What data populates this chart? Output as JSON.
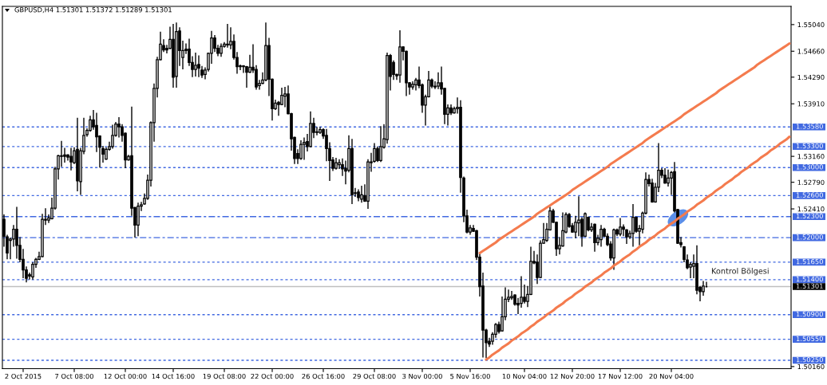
{
  "chart_data": {
    "type": "candlestick",
    "title": "GBPUSD,H4 1.51301 1.51372 1.51289 1.51301",
    "categories": [
      null,
      null,
      null,
      null,
      null,
      null,
      "2 Oct 2015",
      null,
      null,
      null,
      null,
      null,
      null,
      null,
      null,
      null,
      null,
      null,
      null,
      null,
      null,
      null,
      "7 Oct 08:00",
      null,
      null,
      null,
      null,
      null,
      null,
      null,
      null,
      null,
      null,
      null,
      null,
      null,
      null,
      null,
      "12 Oct 00:00",
      null,
      null,
      null,
      null,
      null,
      null,
      null,
      null,
      null,
      null,
      null,
      null,
      null,
      null,
      "14 Oct 16:00",
      null,
      null,
      null,
      null,
      null,
      null,
      null,
      null,
      null,
      null,
      null,
      null,
      null,
      null,
      null,
      "19 Oct 08:00",
      null,
      null,
      null,
      null,
      null,
      null,
      null,
      null,
      null,
      null,
      null,
      null,
      null,
      null,
      "22 Oct 00:00",
      null,
      null,
      null,
      null,
      null,
      null,
      null,
      null,
      null,
      null,
      null,
      null,
      null,
      null,
      null,
      "26 Oct 16:00",
      null,
      null,
      null,
      null,
      null,
      null,
      null,
      null,
      null,
      null,
      null,
      null,
      null,
      null,
      null,
      "29 Oct 08:00",
      null,
      null,
      null,
      null,
      null,
      null,
      null,
      null,
      null,
      null,
      null,
      null,
      null,
      null,
      "3 Nov 00:00",
      null,
      null,
      null,
      null,
      null,
      null,
      null,
      null,
      null,
      null,
      null,
      null,
      null,
      null,
      "5 Nov 16:00",
      null,
      null,
      null,
      null,
      null,
      null,
      null,
      null,
      null,
      null,
      null,
      null,
      null,
      null,
      null,
      null,
      "10 Nov 04:00",
      null,
      null,
      null,
      null,
      null,
      null,
      null,
      null,
      null,
      null,
      null,
      null,
      null,
      null,
      "12 Nov 20:00",
      null,
      null,
      null,
      null,
      null,
      null,
      null,
      null,
      null,
      null,
      null,
      null,
      null,
      null,
      "17 Nov 12:00",
      null,
      null,
      null,
      null,
      null,
      null,
      null,
      null,
      null,
      null,
      null,
      null,
      null,
      null,
      null,
      "20 Nov 04:00",
      null,
      null,
      null,
      null,
      null,
      null,
      null,
      null,
      null,
      null,
      null,
      null,
      null,
      null,
      null,
      null,
      null,
      null,
      null,
      null,
      null,
      null,
      null,
      null,
      null,
      null,
      null,
      null,
      null,
      null,
      null,
      null,
      null,
      null,
      null,
      null,
      null
    ],
    "ohlc": [
      [
        1.5226,
        1.5233,
        1.5187,
        1.5202
      ],
      [
        1.5201,
        1.5204,
        1.5169,
        1.5178
      ],
      [
        1.5196,
        1.52,
        1.5169,
        1.5198
      ],
      [
        1.5198,
        1.5218,
        1.5187,
        1.5212
      ],
      [
        1.5212,
        1.5244,
        1.517,
        1.5189
      ],
      [
        1.5189,
        1.5201,
        1.5165,
        1.5169
      ],
      [
        1.5169,
        1.5184,
        1.5142,
        1.5154
      ],
      [
        1.5154,
        1.5159,
        1.5136,
        1.5142
      ],
      [
        1.5147,
        1.515,
        1.514,
        1.5145
      ],
      [
        1.5144,
        1.5165,
        1.514,
        1.5162
      ],
      [
        1.5162,
        1.5171,
        1.5157,
        1.5169
      ],
      [
        1.5169,
        1.518,
        1.5168,
        1.5173
      ],
      [
        1.5173,
        1.5234,
        1.5172,
        1.5226
      ],
      [
        1.5226,
        1.5242,
        1.5218,
        1.5225
      ],
      [
        1.5225,
        1.5233,
        1.5221,
        1.5228
      ],
      [
        1.5227,
        1.5257,
        1.5226,
        1.5242
      ],
      [
        1.5242,
        1.5301,
        1.524,
        1.5298
      ],
      [
        1.5298,
        1.5318,
        1.5283,
        1.5317
      ],
      [
        1.5317,
        1.5338,
        1.5301,
        1.5316
      ],
      [
        1.5318,
        1.5328,
        1.5307,
        1.5316
      ],
      [
        1.5318,
        1.5319,
        1.531,
        1.5315
      ],
      [
        1.5316,
        1.5328,
        1.5296,
        1.5308
      ],
      [
        1.5307,
        1.5329,
        1.5305,
        1.5324
      ],
      [
        1.5326,
        1.5371,
        1.5266,
        1.5281
      ],
      [
        1.528,
        1.5328,
        1.5261,
        1.5324
      ],
      [
        1.5323,
        1.5371,
        1.5319,
        1.5346
      ],
      [
        1.5347,
        1.5356,
        1.5344,
        1.5353
      ],
      [
        1.5353,
        1.5374,
        1.5351,
        1.5368
      ],
      [
        1.5368,
        1.5382,
        1.5354,
        1.5358
      ],
      [
        1.536,
        1.5378,
        1.5322,
        1.5344
      ],
      [
        1.5345,
        1.5346,
        1.53,
        1.5329
      ],
      [
        1.5327,
        1.5331,
        1.5307,
        1.5319
      ],
      [
        1.5312,
        1.5329,
        1.5311,
        1.5326
      ],
      [
        1.5326,
        1.5337,
        1.5324,
        1.533
      ],
      [
        1.533,
        1.5361,
        1.5327,
        1.5346
      ],
      [
        1.5346,
        1.5365,
        1.5344,
        1.5362
      ],
      [
        1.5362,
        1.5372,
        1.5343,
        1.5358
      ],
      [
        1.5358,
        1.5362,
        1.5337,
        1.5346
      ],
      [
        1.5349,
        1.535,
        1.5299,
        1.5311
      ],
      [
        1.5311,
        1.5318,
        1.531,
        1.5316
      ],
      [
        1.5317,
        1.5387,
        1.5231,
        1.5242
      ],
      [
        1.5243,
        1.5244,
        1.52,
        1.5218
      ],
      [
        1.5218,
        1.525,
        1.5202,
        1.5245
      ],
      [
        1.5245,
        1.5251,
        1.5238,
        1.5247
      ],
      [
        1.5248,
        1.5263,
        1.5247,
        1.5256
      ],
      [
        1.5256,
        1.529,
        1.5254,
        1.5282
      ],
      [
        1.5282,
        1.5366,
        1.5273,
        1.5364
      ],
      [
        1.5364,
        1.542,
        1.5337,
        1.5413
      ],
      [
        1.5413,
        1.5458,
        1.54,
        1.5454
      ],
      [
        1.5454,
        1.5494,
        1.5453,
        1.5476
      ],
      [
        1.5474,
        1.5483,
        1.5465,
        1.5468
      ],
      [
        1.547,
        1.5475,
        1.5463,
        1.5468
      ],
      [
        1.547,
        1.5501,
        1.5469,
        1.5483
      ],
      [
        1.5483,
        1.5505,
        1.5414,
        1.5429
      ],
      [
        1.543,
        1.5507,
        1.5414,
        1.5494
      ],
      [
        1.5495,
        1.55,
        1.5445,
        1.5467
      ],
      [
        1.5457,
        1.5481,
        1.544,
        1.5467
      ],
      [
        1.5469,
        1.5477,
        1.5462,
        1.5467
      ],
      [
        1.5469,
        1.5484,
        1.5445,
        1.545
      ],
      [
        1.545,
        1.5459,
        1.5429,
        1.544
      ],
      [
        1.544,
        1.5464,
        1.543,
        1.5446
      ],
      [
        1.5447,
        1.546,
        1.5429,
        1.5442
      ],
      [
        1.5439,
        1.5445,
        1.5428,
        1.5432
      ],
      [
        1.5433,
        1.5443,
        1.5426,
        1.5439
      ],
      [
        1.544,
        1.5464,
        1.5437,
        1.5463
      ],
      [
        1.5463,
        1.5495,
        1.5448,
        1.5485
      ],
      [
        1.5485,
        1.5489,
        1.5465,
        1.547
      ],
      [
        1.547,
        1.5475,
        1.5459,
        1.5463
      ],
      [
        1.5463,
        1.5477,
        1.5458,
        1.5473
      ],
      [
        1.5473,
        1.5479,
        1.5471,
        1.5476
      ],
      [
        1.5476,
        1.5505,
        1.5471,
        1.5475
      ],
      [
        1.5475,
        1.55,
        1.5469,
        1.548
      ],
      [
        1.548,
        1.549,
        1.5454,
        1.5457
      ],
      [
        1.5457,
        1.5465,
        1.5434,
        1.5444
      ],
      [
        1.5444,
        1.5447,
        1.5439,
        1.5445
      ],
      [
        1.5445,
        1.5446,
        1.5435,
        1.5444
      ],
      [
        1.5444,
        1.5445,
        1.5414,
        1.5436
      ],
      [
        1.5436,
        1.5461,
        1.5435,
        1.5443
      ],
      [
        1.5443,
        1.5476,
        1.5435,
        1.5439
      ],
      [
        1.544,
        1.5446,
        1.5411,
        1.5415
      ],
      [
        1.5417,
        1.5425,
        1.5411,
        1.542
      ],
      [
        1.542,
        1.5436,
        1.5419,
        1.5425
      ],
      [
        1.5425,
        1.5507,
        1.5423,
        1.5474
      ],
      [
        1.5474,
        1.5485,
        1.5402,
        1.5426
      ],
      [
        1.5426,
        1.5427,
        1.5367,
        1.5384
      ],
      [
        1.5384,
        1.5397,
        1.5382,
        1.5392
      ],
      [
        1.5393,
        1.5395,
        1.5374,
        1.539
      ],
      [
        1.539,
        1.5414,
        1.5389,
        1.5403
      ],
      [
        1.5402,
        1.5415,
        1.5386,
        1.5405
      ],
      [
        1.5405,
        1.5417,
        1.5376,
        1.5377
      ],
      [
        1.5377,
        1.5378,
        1.5324,
        1.5341
      ],
      [
        1.5343,
        1.5344,
        1.5305,
        1.5313
      ],
      [
        1.532,
        1.5326,
        1.5305,
        1.5313
      ],
      [
        1.5313,
        1.5339,
        1.5311,
        1.5333
      ],
      [
        1.5333,
        1.5343,
        1.5311,
        1.5336
      ],
      [
        1.5337,
        1.5348,
        1.5323,
        1.533
      ],
      [
        1.533,
        1.538,
        1.5329,
        1.5363
      ],
      [
        1.5363,
        1.5371,
        1.5342,
        1.535
      ],
      [
        1.5351,
        1.5358,
        1.5346,
        1.535
      ],
      [
        1.535,
        1.5358,
        1.5348,
        1.5354
      ],
      [
        1.5354,
        1.5356,
        1.5341,
        1.5345
      ],
      [
        1.5346,
        1.5355,
        1.5309,
        1.5327
      ],
      [
        1.5327,
        1.5336,
        1.5281,
        1.531
      ],
      [
        1.5311,
        1.5315,
        1.5295,
        1.5299
      ],
      [
        1.5299,
        1.5314,
        1.5297,
        1.5307
      ],
      [
        1.5304,
        1.5312,
        1.5298,
        1.5307
      ],
      [
        1.5304,
        1.5313,
        1.5288,
        1.5298
      ],
      [
        1.5299,
        1.531,
        1.5276,
        1.5295
      ],
      [
        1.5296,
        1.5346,
        1.5293,
        1.5327
      ],
      [
        1.5327,
        1.5341,
        1.5248,
        1.5261
      ],
      [
        1.5264,
        1.5271,
        1.5258,
        1.5263
      ],
      [
        1.5265,
        1.5269,
        1.5252,
        1.5257
      ],
      [
        1.5255,
        1.5274,
        1.525,
        1.5261
      ],
      [
        1.526,
        1.5276,
        1.5251,
        1.5252
      ],
      [
        1.5252,
        1.5312,
        1.5241,
        1.5308
      ],
      [
        1.5307,
        1.5321,
        1.5294,
        1.5308
      ],
      [
        1.5309,
        1.5335,
        1.5307,
        1.5327
      ],
      [
        1.5327,
        1.533,
        1.5308,
        1.531
      ],
      [
        1.531,
        1.5359,
        1.5308,
        1.533
      ],
      [
        1.5329,
        1.5362,
        1.5327,
        1.5341
      ],
      [
        1.534,
        1.5464,
        1.5334,
        1.546
      ],
      [
        1.546,
        1.5462,
        1.541,
        1.543
      ],
      [
        1.545,
        1.5453,
        1.5425,
        1.5433
      ],
      [
        1.5433,
        1.5434,
        1.5425,
        1.5431
      ],
      [
        1.5432,
        1.5496,
        1.5421,
        1.5472
      ],
      [
        1.5472,
        1.5473,
        1.5453,
        1.5466
      ],
      [
        1.5466,
        1.5467,
        1.5402,
        1.5421
      ],
      [
        1.5421,
        1.5422,
        1.5404,
        1.5415
      ],
      [
        1.5415,
        1.5423,
        1.5411,
        1.5419
      ],
      [
        1.5418,
        1.5428,
        1.541,
        1.5425
      ],
      [
        1.5425,
        1.5444,
        1.5413,
        1.5417
      ],
      [
        1.5418,
        1.542,
        1.5378,
        1.5389
      ],
      [
        1.5389,
        1.5404,
        1.536,
        1.5401
      ],
      [
        1.5401,
        1.5438,
        1.54,
        1.5425
      ],
      [
        1.5425,
        1.5427,
        1.5413,
        1.5416
      ],
      [
        1.5416,
        1.5423,
        1.5412,
        1.5415
      ],
      [
        1.5416,
        1.5436,
        1.5412,
        1.5421
      ],
      [
        1.5421,
        1.5444,
        1.5404,
        1.5412
      ],
      [
        1.5413,
        1.5414,
        1.5362,
        1.5376
      ],
      [
        1.5376,
        1.539,
        1.536,
        1.5385
      ],
      [
        1.5385,
        1.539,
        1.5375,
        1.5378
      ],
      [
        1.5378,
        1.5387,
        1.5377,
        1.5384
      ],
      [
        1.5384,
        1.54,
        1.5377,
        1.5386
      ],
      [
        1.5386,
        1.5396,
        1.5264,
        1.5286
      ],
      [
        1.5285,
        1.5287,
        1.5222,
        1.5231
      ],
      [
        1.5231,
        1.524,
        1.5206,
        1.5208
      ],
      [
        1.5208,
        1.5218,
        1.5204,
        1.5214
      ],
      [
        1.5213,
        1.5218,
        1.5208,
        1.5209
      ],
      [
        1.521,
        1.5211,
        1.5168,
        1.5172
      ],
      [
        1.5172,
        1.5179,
        1.5116,
        1.513
      ],
      [
        1.5131,
        1.515,
        1.5029,
        1.5068
      ],
      [
        1.5068,
        1.507,
        1.5028,
        1.505
      ],
      [
        1.5052,
        1.5057,
        1.5044,
        1.5048
      ],
      [
        1.5052,
        1.5065,
        1.5047,
        1.5062
      ],
      [
        1.5062,
        1.5078,
        1.5057,
        1.5076
      ],
      [
        1.5076,
        1.508,
        1.5063,
        1.5066
      ],
      [
        1.5067,
        1.5116,
        1.5066,
        1.5087
      ],
      [
        1.5087,
        1.5129,
        1.5082,
        1.5112
      ],
      [
        1.5112,
        1.5126,
        1.5108,
        1.5115
      ],
      [
        1.5114,
        1.5124,
        1.5111,
        1.5116
      ],
      [
        1.5118,
        1.5119,
        1.5103,
        1.5105
      ],
      [
        1.5106,
        1.5114,
        1.5091,
        1.5104
      ],
      [
        1.5106,
        1.5145,
        1.51,
        1.5115
      ],
      [
        1.5115,
        1.5133,
        1.5106,
        1.5109
      ],
      [
        1.5109,
        1.5131,
        1.5101,
        1.5119
      ],
      [
        1.5119,
        1.5187,
        1.5118,
        1.5166
      ],
      [
        1.5166,
        1.5181,
        1.5162,
        1.5164
      ],
      [
        1.5165,
        1.5176,
        1.5134,
        1.5143
      ],
      [
        1.5143,
        1.5196,
        1.5142,
        1.5192
      ],
      [
        1.5192,
        1.5221,
        1.5191,
        1.5197
      ],
      [
        1.5196,
        1.5221,
        1.5194,
        1.5212
      ],
      [
        1.5211,
        1.5244,
        1.521,
        1.5238
      ],
      [
        1.5238,
        1.5241,
        1.5221,
        1.5222
      ],
      [
        1.5222,
        1.5223,
        1.5174,
        1.5184
      ],
      [
        1.5184,
        1.5201,
        1.5176,
        1.5189
      ],
      [
        1.5188,
        1.5236,
        1.5187,
        1.521
      ],
      [
        1.5208,
        1.5236,
        1.5206,
        1.5233
      ],
      [
        1.5233,
        1.5235,
        1.5214,
        1.5216
      ],
      [
        1.5217,
        1.5221,
        1.5207,
        1.5208
      ],
      [
        1.5208,
        1.5231,
        1.5199,
        1.5222
      ],
      [
        1.5221,
        1.5259,
        1.5202,
        1.5225
      ],
      [
        1.5226,
        1.5229,
        1.5187,
        1.5202
      ],
      [
        1.5202,
        1.5236,
        1.5201,
        1.5234
      ],
      [
        1.5229,
        1.523,
        1.5209,
        1.5211
      ],
      [
        1.5211,
        1.5221,
        1.5208,
        1.5215
      ],
      [
        1.5219,
        1.522,
        1.518,
        1.5193
      ],
      [
        1.5193,
        1.5204,
        1.5189,
        1.5199
      ],
      [
        1.5197,
        1.5218,
        1.5187,
        1.5212
      ],
      [
        1.5212,
        1.5214,
        1.5201,
        1.5202
      ],
      [
        1.5202,
        1.5206,
        1.5188,
        1.519
      ],
      [
        1.5191,
        1.5195,
        1.5167,
        1.5171
      ],
      [
        1.5171,
        1.5213,
        1.5154,
        1.5211
      ],
      [
        1.5211,
        1.5213,
        1.5202,
        1.5205
      ],
      [
        1.5205,
        1.5228,
        1.5202,
        1.5215
      ],
      [
        1.5215,
        1.5219,
        1.5202,
        1.5212
      ],
      [
        1.5211,
        1.5212,
        1.5191,
        1.5201
      ],
      [
        1.5201,
        1.521,
        1.5198,
        1.5206
      ],
      [
        1.5206,
        1.5248,
        1.5187,
        1.5229
      ],
      [
        1.5229,
        1.523,
        1.5207,
        1.5209
      ],
      [
        1.5209,
        1.5218,
        1.5189,
        1.5213
      ],
      [
        1.5212,
        1.5237,
        1.5206,
        1.5235
      ],
      [
        1.5235,
        1.5293,
        1.5233,
        1.5283
      ],
      [
        1.5283,
        1.529,
        1.5273,
        1.5277
      ],
      [
        1.5278,
        1.5284,
        1.525,
        1.5251
      ],
      [
        1.5251,
        1.5278,
        1.525,
        1.5272
      ],
      [
        1.5272,
        1.5335,
        1.5265,
        1.5296
      ],
      [
        1.5296,
        1.5299,
        1.5285,
        1.5289
      ],
      [
        1.5289,
        1.5299,
        1.5277,
        1.5278
      ],
      [
        1.5278,
        1.5297,
        1.5273,
        1.5285
      ],
      [
        1.5285,
        1.5295,
        1.5261,
        1.5293
      ],
      [
        1.5294,
        1.5308,
        1.5236,
        1.5238
      ],
      [
        1.524,
        1.5241,
        1.5191,
        1.5192
      ],
      [
        1.5193,
        1.5201,
        1.5186,
        1.519
      ],
      [
        1.5187,
        1.5188,
        1.5165,
        1.5169
      ],
      [
        1.5168,
        1.5176,
        1.5155,
        1.5157
      ],
      [
        1.5158,
        1.5165,
        1.5142,
        1.5162
      ],
      [
        1.5159,
        1.5176,
        1.5142,
        1.5163
      ],
      [
        1.5163,
        1.5189,
        1.5119,
        1.5125
      ],
      [
        1.5129,
        1.5131,
        1.5109,
        1.5123
      ],
      [
        1.5123,
        1.5138,
        1.5117,
        1.5131
      ],
      [
        1.513,
        1.5137,
        1.5129,
        1.513
      ],
      null,
      null,
      null,
      null,
      null,
      null,
      null,
      null,
      null,
      null,
      null,
      null,
      null,
      null,
      null,
      null,
      null,
      null,
      null,
      null,
      null,
      null,
      null,
      null,
      null,
      null
    ],
    "series": [
      {
        "type": "line",
        "color": "#f47b4e",
        "values": [
          null,
          null,
          null,
          null,
          null,
          null,
          null,
          null,
          null,
          null,
          null,
          null,
          null,
          null,
          null,
          null,
          null,
          null,
          null,
          null,
          null,
          null,
          null,
          null,
          null,
          null,
          null,
          null,
          null,
          null,
          null,
          null,
          null,
          null,
          null,
          null,
          null,
          null,
          null,
          null,
          null,
          null,
          null,
          null,
          null,
          null,
          null,
          null,
          null,
          null,
          null,
          null,
          null,
          null,
          null,
          null,
          null,
          null,
          null,
          null,
          null,
          null,
          null,
          null,
          null,
          null,
          null,
          null,
          null,
          null,
          null,
          null,
          null,
          null,
          null,
          null,
          null,
          null,
          null,
          null,
          null,
          null,
          null,
          null,
          null,
          null,
          null,
          null,
          null,
          null,
          null,
          null,
          null,
          null,
          null,
          null,
          null,
          null,
          null,
          null,
          null,
          null,
          null,
          null,
          null,
          null,
          null,
          null,
          null,
          null,
          null,
          null,
          null,
          null,
          null,
          null,
          null,
          null,
          null,
          null,
          null,
          null,
          null,
          null,
          null,
          null,
          null,
          null,
          null,
          null,
          null,
          null,
          null,
          null,
          null,
          null,
          null,
          null,
          null,
          null,
          null,
          null,
          null,
          null,
          null,
          null,
          null,
          null,
          null,
          1.5178,
          1.5181,
          1.5184,
          1.5187,
          1.519,
          1.5193,
          1.5197,
          1.52,
          1.5203,
          1.5206,
          1.5209,
          1.5212,
          1.5215,
          1.5218,
          1.5221,
          1.5224,
          1.5227,
          1.523,
          1.5234,
          1.5237,
          1.524,
          1.5243,
          1.5246,
          1.5249,
          1.5252,
          1.5255,
          1.5258,
          1.5261,
          1.5264,
          1.5268,
          1.5271,
          1.5274,
          1.5277,
          1.528,
          1.5283,
          1.5286,
          1.5289,
          1.5292,
          1.5295,
          1.5298,
          1.5301,
          1.5305,
          1.5308,
          1.5311,
          1.5314,
          1.5317,
          1.532,
          1.5323,
          1.5326,
          1.5329,
          1.5332,
          1.5335,
          1.5339,
          1.5342,
          1.5345,
          1.5348,
          1.5351,
          1.5354,
          1.5357,
          1.536,
          1.5363,
          1.5366,
          1.5369,
          1.5372,
          1.5376,
          1.5379,
          1.5382,
          1.5385,
          1.5388,
          1.5391,
          1.5394,
          1.5397,
          1.54,
          1.5403,
          1.5406,
          1.541,
          1.5413,
          1.5416,
          1.5419,
          1.5422,
          1.5425,
          1.5428,
          1.5431,
          1.5434,
          1.5437,
          1.544,
          1.5443,
          1.5447,
          1.545,
          1.5453,
          1.5456,
          1.5459,
          1.5462,
          1.5465,
          1.5468,
          1.5471,
          1.5474,
          1.5477
        ]
      },
      {
        "type": "line",
        "color": "#f47b4e",
        "values": [
          null,
          null,
          null,
          null,
          null,
          null,
          null,
          null,
          null,
          null,
          null,
          null,
          null,
          null,
          null,
          null,
          null,
          null,
          null,
          null,
          null,
          null,
          null,
          null,
          null,
          null,
          null,
          null,
          null,
          null,
          null,
          null,
          null,
          null,
          null,
          null,
          null,
          null,
          null,
          null,
          null,
          null,
          null,
          null,
          null,
          null,
          null,
          null,
          null,
          null,
          null,
          null,
          null,
          null,
          null,
          null,
          null,
          null,
          null,
          null,
          null,
          null,
          null,
          null,
          null,
          null,
          null,
          null,
          null,
          null,
          null,
          null,
          null,
          null,
          null,
          null,
          null,
          null,
          null,
          null,
          null,
          null,
          null,
          null,
          null,
          null,
          null,
          null,
          null,
          null,
          null,
          null,
          null,
          null,
          null,
          null,
          null,
          null,
          null,
          null,
          null,
          null,
          null,
          null,
          null,
          null,
          null,
          null,
          null,
          null,
          null,
          null,
          null,
          null,
          null,
          null,
          null,
          null,
          null,
          null,
          null,
          null,
          null,
          null,
          null,
          null,
          null,
          null,
          null,
          null,
          null,
          null,
          null,
          null,
          null,
          null,
          null,
          null,
          null,
          null,
          null,
          null,
          null,
          null,
          null,
          null,
          null,
          null,
          null,
          null,
          null,
          1.5026,
          1.5029,
          1.5033,
          1.5036,
          1.5039,
          1.5043,
          1.5046,
          1.5049,
          1.5053,
          1.5056,
          1.5059,
          1.5063,
          1.5066,
          1.5069,
          1.5073,
          1.5076,
          1.508,
          1.5083,
          1.5086,
          1.509,
          1.5093,
          1.5096,
          1.51,
          1.5103,
          1.5106,
          1.511,
          1.5113,
          1.5116,
          1.512,
          1.5123,
          1.5126,
          1.513,
          1.5133,
          1.5136,
          1.514,
          1.5143,
          1.5146,
          1.515,
          1.5153,
          1.5156,
          1.516,
          1.5163,
          1.5166,
          1.517,
          1.5173,
          1.5176,
          1.518,
          1.5183,
          1.5187,
          1.519,
          1.5193,
          1.5197,
          1.52,
          1.5203,
          1.5207,
          1.521,
          1.5213,
          1.5217,
          1.522,
          1.5223,
          1.5227,
          1.523,
          1.5233,
          1.5237,
          1.524,
          1.5243,
          1.5247,
          1.525,
          1.5253,
          1.5257,
          1.526,
          1.5263,
          1.5267,
          1.527,
          1.5273,
          1.5277,
          1.528,
          1.5283,
          1.5287,
          1.529,
          1.5294,
          1.5297,
          1.53,
          1.5304,
          1.5307,
          1.531,
          1.5314,
          1.5317,
          1.532,
          1.5324,
          1.5327,
          1.533,
          1.5334,
          1.5337,
          1.534,
          1.5344
        ]
      }
    ],
    "ylim": [
      1.5013,
      1.553
    ],
    "yticks": [
      {
        "value": 1.5504,
        "label": "1.55040"
      },
      {
        "value": 1.5466,
        "label": "1.54660"
      },
      {
        "value": 1.5429,
        "label": "1.54290"
      },
      {
        "value": 1.5391,
        "label": "1.53910"
      },
      {
        "value": 1.5316,
        "label": "1.53160"
      },
      {
        "value": 1.5279,
        "label": "1.52790"
      },
      {
        "value": 1.5241,
        "label": "1.52410"
      },
      {
        "value": 1.5016,
        "label": "1.50160"
      }
    ],
    "ref_lines": [
      {
        "axis": "y",
        "value": 1.5358,
        "label": "1.53580",
        "color": "#4169e1",
        "line_style": "dotted"
      },
      {
        "axis": "y",
        "value": 1.533,
        "label": "1.53300",
        "color": "#4169e1",
        "line_style": "dotted"
      },
      {
        "axis": "y",
        "value": 1.53,
        "label": "1.53000",
        "color": "#4169e1",
        "line_style": "dotted"
      },
      {
        "axis": "y",
        "value": 1.526,
        "label": "1.52600",
        "color": "#4169e1",
        "line_style": "dotted"
      },
      {
        "axis": "y",
        "value": 1.523,
        "label": "1.52300",
        "color": "#4169e1",
        "line_style": "dashed"
      },
      {
        "axis": "y",
        "value": 1.52,
        "label": "1.52000",
        "color": "#4169e1",
        "line_style": "dashed"
      },
      {
        "axis": "y",
        "value": 1.5165,
        "label": "1.51650",
        "color": "#4169e1",
        "line_style": "dotted"
      },
      {
        "axis": "y",
        "value": 1.514,
        "label": "1.51400",
        "color": "#4169e1",
        "line_style": "dotted"
      },
      {
        "axis": "y",
        "value": 1.509,
        "label": "1.50900",
        "color": "#4169e1",
        "line_style": "dotted"
      },
      {
        "axis": "y",
        "value": 1.5055,
        "label": "1.50550",
        "color": "#4169e1",
        "line_style": "dotted"
      },
      {
        "axis": "y",
        "value": 1.5025,
        "label": "1.50250",
        "color": "#4169e1",
        "line_style": "dotted"
      },
      {
        "axis": "y",
        "value": 1.51301,
        "label": "1.51301",
        "color": "#c0c0c0",
        "line_style": "solid"
      }
    ],
    "annotations": [
      "Kontrol Bölgesi"
    ]
  }
}
